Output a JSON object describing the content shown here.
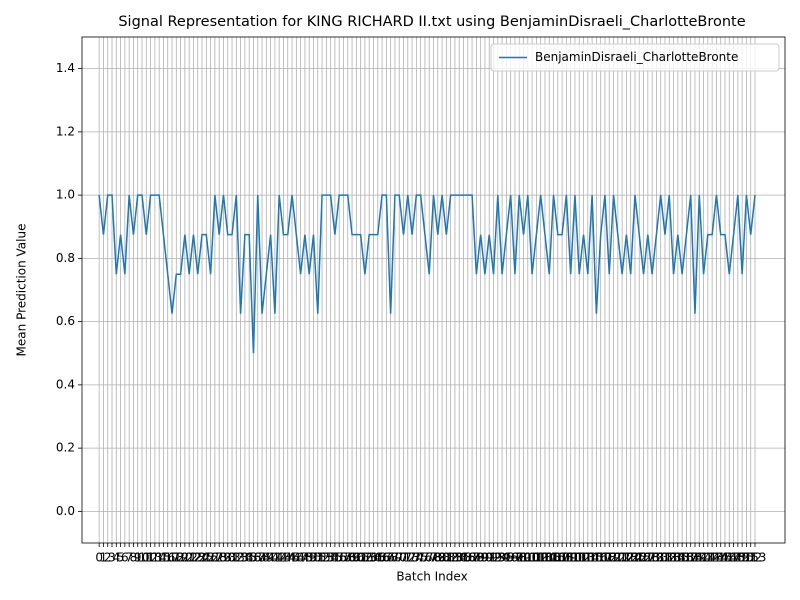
{
  "chart_data": {
    "type": "line",
    "title": "Signal Representation for KING RICHARD II.txt using BenjaminDisraeli_CharlotteBronte",
    "xlabel": "Batch Index",
    "ylabel": "Mean Prediction Value",
    "x": [
      0,
      1,
      2,
      3,
      4,
      5,
      6,
      7,
      8,
      9,
      10,
      11,
      12,
      13,
      14,
      15,
      16,
      17,
      18,
      19,
      20,
      21,
      22,
      23,
      24,
      25,
      26,
      27,
      28,
      29,
      30,
      31,
      32,
      33,
      34,
      35,
      36,
      37,
      38,
      39,
      40,
      41,
      42,
      43,
      44,
      45,
      46,
      47,
      48,
      49,
      50,
      51,
      52,
      53,
      54,
      55,
      56,
      57,
      58,
      59,
      60,
      61,
      62,
      63,
      64,
      65,
      66,
      67,
      68,
      69,
      70,
      71,
      72,
      73,
      74,
      75,
      76,
      77,
      78,
      79,
      80,
      81,
      82,
      83,
      84,
      85,
      86,
      87,
      88,
      89,
      90,
      91,
      92,
      93,
      94,
      95,
      96,
      97,
      98,
      99,
      100,
      101,
      102,
      103,
      104,
      105,
      106,
      107,
      108,
      109,
      110,
      111,
      112,
      113,
      114,
      115,
      116,
      117,
      118,
      119,
      120,
      121,
      122,
      123,
      124,
      125,
      126,
      127,
      128,
      129,
      130,
      131,
      132,
      133,
      134,
      135,
      136,
      137,
      138,
      139,
      140,
      141,
      142,
      143,
      144,
      145,
      146,
      147,
      148,
      149,
      150,
      151,
      152,
      153
    ],
    "series": [
      {
        "name": "BenjaminDisraeli_CharlotteBronte",
        "color": "#1f77b4",
        "values": [
          1,
          0.875,
          1,
          1,
          0.75,
          0.875,
          0.75,
          1,
          0.875,
          1,
          1,
          0.875,
          1,
          1,
          1,
          0.875,
          0.75,
          0.625,
          0.75,
          0.75,
          0.875,
          0.75,
          0.875,
          0.75,
          0.875,
          0.875,
          0.75,
          1,
          0.875,
          1,
          0.875,
          0.875,
          1,
          0.625,
          0.875,
          0.875,
          0.5,
          1,
          0.625,
          0.75,
          0.875,
          0.625,
          1,
          0.875,
          0.875,
          1,
          0.875,
          0.75,
          0.875,
          0.75,
          0.875,
          0.625,
          1,
          1,
          1,
          0.875,
          1,
          1,
          1,
          0.875,
          0.875,
          0.875,
          0.75,
          0.875,
          0.875,
          0.875,
          1,
          1,
          0.625,
          1,
          1,
          0.875,
          1,
          0.875,
          1,
          1,
          0.875,
          0.75,
          1,
          0.875,
          1,
          0.875,
          1,
          1,
          1,
          1,
          1,
          1,
          0.75,
          0.875,
          0.75,
          0.875,
          0.75,
          1,
          0.75,
          0.875,
          1,
          0.75,
          1,
          0.875,
          1,
          0.75,
          0.875,
          1,
          0.875,
          0.75,
          1,
          0.875,
          0.875,
          1,
          0.75,
          1,
          0.75,
          0.875,
          0.75,
          1,
          0.625,
          0.875,
          1,
          0.75,
          1,
          0.875,
          0.75,
          0.875,
          0.75,
          1,
          0.875,
          0.75,
          0.875,
          0.75,
          0.875,
          1,
          0.875,
          1,
          0.75,
          0.875,
          0.75,
          0.875,
          1,
          0.625,
          1,
          0.75,
          0.875,
          0.875,
          1,
          0.875,
          0.875,
          0.75,
          0.875,
          1,
          0.75,
          1,
          0.875,
          1
        ]
      }
    ],
    "xlim": [
      -4,
      160
    ],
    "xticks": [
      0,
      1,
      2,
      3,
      4,
      5,
      6,
      7,
      8,
      9,
      10,
      11,
      12,
      13,
      14,
      15,
      16,
      17,
      18,
      19,
      20,
      21,
      22,
      23,
      24,
      25,
      26,
      27,
      28,
      29,
      30,
      31,
      32,
      33,
      34,
      35,
      36,
      37,
      38,
      39,
      40,
      41,
      42,
      43,
      44,
      45,
      46,
      47,
      48,
      49,
      50,
      51,
      52,
      53,
      54,
      55,
      56,
      57,
      58,
      59,
      60,
      61,
      62,
      63,
      64,
      65,
      66,
      67,
      68,
      69,
      70,
      71,
      72,
      73,
      74,
      75,
      76,
      77,
      78,
      79,
      80,
      81,
      82,
      83,
      84,
      85,
      86,
      87,
      88,
      89,
      90,
      91,
      92,
      93,
      94,
      95,
      96,
      97,
      98,
      99,
      100,
      101,
      102,
      103,
      104,
      105,
      106,
      107,
      108,
      109,
      110,
      111,
      112,
      113,
      114,
      115,
      116,
      117,
      118,
      119,
      120,
      121,
      122,
      123,
      124,
      125,
      126,
      127,
      128,
      129,
      130,
      131,
      132,
      133,
      134,
      135,
      136,
      137,
      138,
      139,
      140,
      141,
      142,
      143,
      144,
      145,
      146,
      147,
      148,
      149,
      150,
      151,
      152,
      153
    ],
    "ylim": [
      -0.1,
      1.5
    ],
    "yticks": [
      {
        "value": 0,
        "label": "0.0"
      },
      0.2,
      0.4,
      0.6,
      0.8,
      {
        "value": 1,
        "label": "1.0"
      },
      1.2,
      1.4
    ],
    "grid": true,
    "legend": "upper right"
  }
}
